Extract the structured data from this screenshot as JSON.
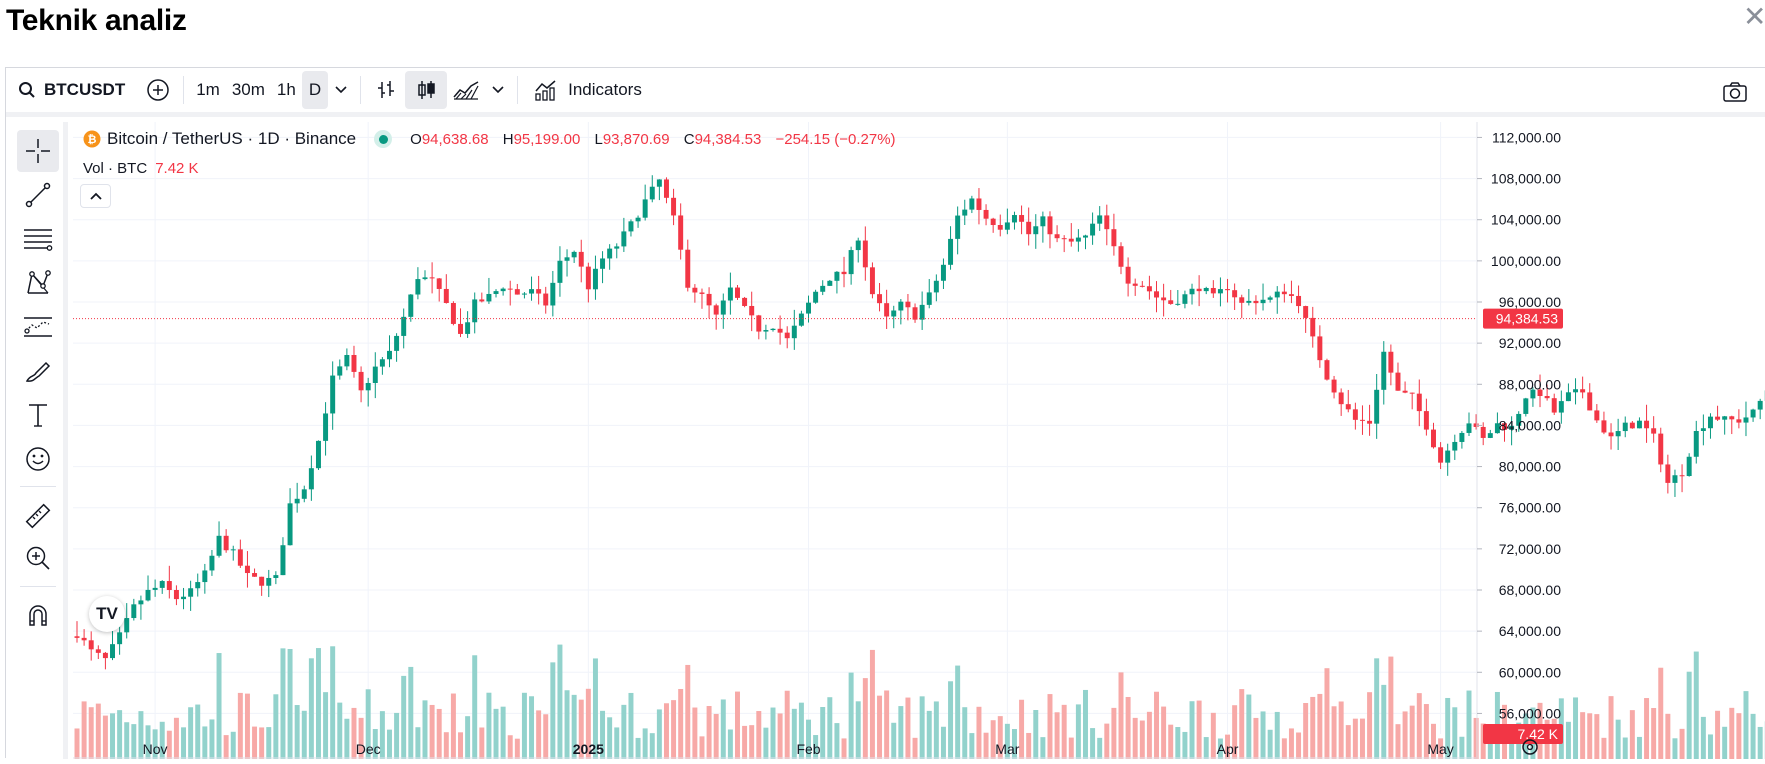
{
  "page": {
    "title": "Teknik analiz",
    "close_icon": "close-icon"
  },
  "toolbar": {
    "symbol": "BTCUSDT",
    "intervals": [
      "1m",
      "30m",
      "1h",
      "D"
    ],
    "active_interval": "D",
    "indicators_label": "Indicators"
  },
  "legend": {
    "title": "Bitcoin / TetherUS · 1D · Binance",
    "open_key": "O",
    "open": "94,638.68",
    "high_key": "H",
    "high": "95,199.00",
    "low_key": "L",
    "low": "93,870.69",
    "close_key": "C",
    "close": "94,384.53",
    "change": "−254.15 (−0.27%)",
    "volume_label": "Vol · BTC",
    "volume": "7.42 K"
  },
  "axes": {
    "y_ticks": [
      "112,000.00",
      "108,000.00",
      "104,000.00",
      "100,000.00",
      "96,000.00",
      "92,000.00",
      "88,000.00",
      "84,000.00",
      "80,000.00",
      "76,000.00",
      "72,000.00",
      "68,000.00",
      "64,000.00",
      "60,000.00",
      "56,000.00"
    ],
    "x_ticks": [
      "Nov",
      "Dec",
      "2025",
      "Feb",
      "Mar",
      "Apr",
      "May"
    ],
    "last_price_label": "94,384.53",
    "last_volume_label": "7.42 K"
  },
  "colors": {
    "up": "#089981",
    "down": "#f23645",
    "up_vol": "#92d2cc",
    "down_vol": "#f7a9a7",
    "grid": "#f0f3fa"
  },
  "chart_data": {
    "type": "candlestick",
    "title": "Bitcoin / TetherUS · 1D · Binance",
    "y_range": [
      54000,
      113500
    ],
    "x_range_days": [
      "2024-10-21",
      "2025-05-05"
    ],
    "x_ticks": [
      [
        "2024-11-01",
        "Nov"
      ],
      [
        "2024-12-01",
        "Dec"
      ],
      [
        "2025-01-01",
        "2025"
      ],
      [
        "2025-02-01",
        "Feb"
      ],
      [
        "2025-03-01",
        "Mar"
      ],
      [
        "2025-04-01",
        "Apr"
      ],
      [
        "2025-05-01",
        "May"
      ]
    ],
    "last_price": 94384.53,
    "close_anchors": [
      [
        0,
        63800
      ],
      [
        2,
        62000
      ],
      [
        4,
        61200
      ],
      [
        6,
        63500
      ],
      [
        8,
        66300
      ],
      [
        10,
        67800
      ],
      [
        12,
        68500
      ],
      [
        14,
        67200
      ],
      [
        16,
        67800
      ],
      [
        18,
        69500
      ],
      [
        20,
        73000
      ],
      [
        22,
        71500
      ],
      [
        24,
        69300
      ],
      [
        26,
        68800
      ],
      [
        28,
        69100
      ],
      [
        30,
        76300
      ],
      [
        32,
        78000
      ],
      [
        34,
        82500
      ],
      [
        36,
        88500
      ],
      [
        38,
        90500
      ],
      [
        40,
        87200
      ],
      [
        42,
        89600
      ],
      [
        44,
        91000
      ],
      [
        46,
        94500
      ],
      [
        48,
        98500
      ],
      [
        50,
        98000
      ],
      [
        52,
        95700
      ],
      [
        54,
        92800
      ],
      [
        56,
        95800
      ],
      [
        58,
        96500
      ],
      [
        60,
        97600
      ],
      [
        62,
        96800
      ],
      [
        64,
        97000
      ],
      [
        66,
        95800
      ],
      [
        68,
        99800
      ],
      [
        70,
        101000
      ],
      [
        72,
        97500
      ],
      [
        74,
        100200
      ],
      [
        76,
        101500
      ],
      [
        78,
        103500
      ],
      [
        80,
        105800
      ],
      [
        82,
        107800
      ],
      [
        84,
        104000
      ],
      [
        86,
        97800
      ],
      [
        88,
        96500
      ],
      [
        90,
        94500
      ],
      [
        92,
        97200
      ],
      [
        94,
        95200
      ],
      [
        96,
        93400
      ],
      [
        98,
        93800
      ],
      [
        100,
        92300
      ],
      [
        102,
        94600
      ],
      [
        104,
        97000
      ],
      [
        106,
        98400
      ],
      [
        108,
        98800
      ],
      [
        110,
        102400
      ],
      [
        112,
        96800
      ],
      [
        114,
        94300
      ],
      [
        116,
        95700
      ],
      [
        118,
        94700
      ],
      [
        120,
        96600
      ],
      [
        122,
        99600
      ],
      [
        124,
        104300
      ],
      [
        126,
        106000
      ],
      [
        128,
        104200
      ],
      [
        130,
        103400
      ],
      [
        132,
        104800
      ],
      [
        134,
        102600
      ],
      [
        136,
        103900
      ],
      [
        138,
        102000
      ],
      [
        140,
        101800
      ],
      [
        142,
        102300
      ],
      [
        144,
        104300
      ],
      [
        146,
        101200
      ],
      [
        148,
        98200
      ],
      [
        150,
        97700
      ],
      [
        152,
        96500
      ],
      [
        154,
        95900
      ],
      [
        156,
        96600
      ],
      [
        158,
        97500
      ],
      [
        160,
        96400
      ],
      [
        162,
        97500
      ],
      [
        164,
        95800
      ],
      [
        166,
        96200
      ],
      [
        168,
        96300
      ],
      [
        170,
        97100
      ],
      [
        172,
        96000
      ],
      [
        174,
        92300
      ],
      [
        176,
        88800
      ],
      [
        178,
        86300
      ],
      [
        180,
        84500
      ],
      [
        182,
        84300
      ],
      [
        184,
        91100
      ],
      [
        186,
        87200
      ],
      [
        188,
        86700
      ],
      [
        190,
        84000
      ],
      [
        192,
        80500
      ],
      [
        194,
        82800
      ],
      [
        196,
        84400
      ],
      [
        198,
        82600
      ],
      [
        200,
        84100
      ],
      [
        202,
        83800
      ],
      [
        204,
        86900
      ],
      [
        206,
        87200
      ],
      [
        208,
        85300
      ],
      [
        210,
        86900
      ],
      [
        212,
        87300
      ],
      [
        214,
        84500
      ],
      [
        216,
        82700
      ],
      [
        218,
        83900
      ],
      [
        220,
        84300
      ],
      [
        222,
        82800
      ],
      [
        224,
        78400
      ],
      [
        226,
        79500
      ],
      [
        228,
        83300
      ],
      [
        230,
        85000
      ],
      [
        232,
        84500
      ],
      [
        234,
        84500
      ],
      [
        236,
        85200
      ],
      [
        238,
        87500
      ],
      [
        240,
        93500
      ],
      [
        242,
        94500
      ],
      [
        244,
        94384.53
      ]
    ],
    "volume_note": "daily volume bars in BTC, last 7.42 K"
  }
}
